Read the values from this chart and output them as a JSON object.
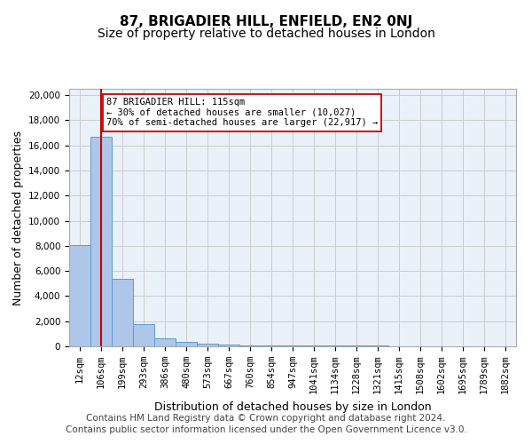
{
  "title": "87, BRIGADIER HILL, ENFIELD, EN2 0NJ",
  "subtitle": "Size of property relative to detached houses in London",
  "xlabel": "Distribution of detached houses by size in London",
  "ylabel": "Number of detached properties",
  "bar_values": [
    8050,
    16700,
    5350,
    1750,
    620,
    330,
    200,
    110,
    90,
    70,
    65,
    55,
    50,
    45,
    40,
    35,
    30,
    25,
    20,
    15,
    10
  ],
  "bar_labels": [
    "12sqm",
    "106sqm",
    "199sqm",
    "293sqm",
    "386sqm",
    "480sqm",
    "573sqm",
    "667sqm",
    "760sqm",
    "854sqm",
    "947sqm",
    "1041sqm",
    "1134sqm",
    "1228sqm",
    "1321sqm",
    "1415sqm",
    "1508sqm",
    "1602sqm",
    "1695sqm",
    "1789sqm",
    "1882sqm"
  ],
  "bar_color": "#aec6e8",
  "bar_edge_color": "#5b9bd5",
  "vline_x": 1.0,
  "vline_color": "#cc0000",
  "annotation_title": "87 BRIGADIER HILL: 115sqm",
  "annotation_line1": "← 30% of detached houses are smaller (10,027)",
  "annotation_line2": "70% of semi-detached houses are larger (22,917) →",
  "annotation_box_color": "#ffffff",
  "annotation_box_edge": "#cc0000",
  "ylim": [
    0,
    20500
  ],
  "yticks": [
    0,
    2000,
    4000,
    6000,
    8000,
    10000,
    12000,
    14000,
    16000,
    18000,
    20000
  ],
  "footer_line1": "Contains HM Land Registry data © Crown copyright and database right 2024.",
  "footer_line2": "Contains public sector information licensed under the Open Government Licence v3.0.",
  "background_color": "#ffffff",
  "ax_background_color": "#eaf1f8",
  "grid_color": "#cccccc",
  "title_fontsize": 11,
  "subtitle_fontsize": 10,
  "axis_label_fontsize": 9,
  "tick_fontsize": 7.5,
  "footer_fontsize": 7.5
}
